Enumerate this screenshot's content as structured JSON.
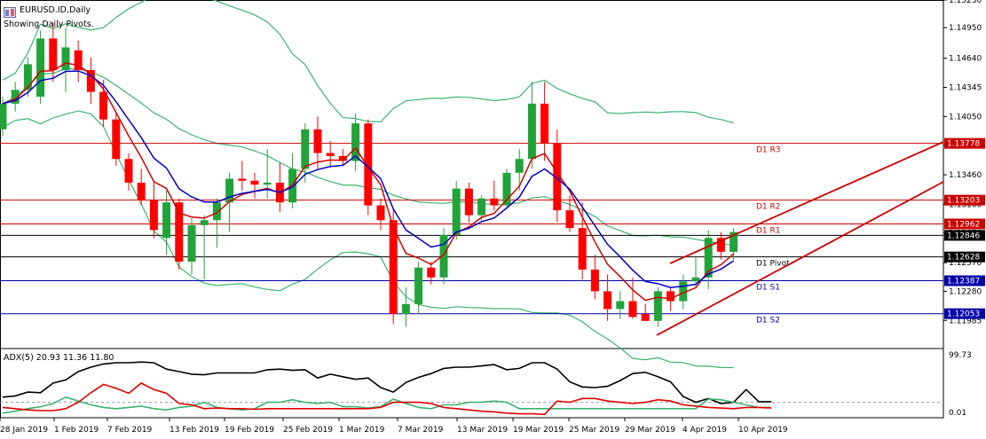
{
  "header": {
    "symbol": "EURUSD.ID,Daily",
    "pivot_note": "Showing Daily Pivots."
  },
  "colors": {
    "bull": "#22a33a",
    "bear": "#ff0000",
    "red_ma": "#d40000",
    "blue_ma": "#0000c8",
    "bands": "#3cb371",
    "resistance": "#cc0000",
    "support": "#0000aa",
    "pivot": "#000000",
    "adx_main": "#000000",
    "adx_plus": "#3cb371",
    "adx_minus": "#e00000"
  },
  "chart_data": [
    {
      "type": "candlestick",
      "title": "EURUSD.ID,Daily",
      "y_range": [
        1.117,
        1.1523
      ],
      "y_ticks": [
        "1.15230",
        "1.14950",
        "1.14640",
        "1.14345",
        "1.14050",
        "1.13760",
        "1.13460",
        "1.13160",
        "1.12870",
        "1.12570",
        "1.12280",
        "1.11985"
      ],
      "x_labels": [
        "28 Jan 2019",
        "1 Feb 2019",
        "7 Feb 2019",
        "13 Feb 2019",
        "19 Feb 2019",
        "25 Feb 2019",
        "1 Mar 2019",
        "7 Mar 2019",
        "13 Mar 2019",
        "19 Mar 2019",
        "25 Mar 2019",
        "29 Mar 2019",
        "4 Apr 2019",
        "10 Apr 2019"
      ],
      "candles": [
        [
          1.1392,
          1.1425,
          1.1385,
          1.1418
        ],
        [
          1.1418,
          1.144,
          1.141,
          1.1432
        ],
        [
          1.1432,
          1.1465,
          1.1425,
          1.1458
        ],
        [
          1.1425,
          1.1492,
          1.1418,
          1.1484
        ],
        [
          1.1484,
          1.15,
          1.144,
          1.1452
        ],
        [
          1.1452,
          1.1495,
          1.143,
          1.1475
        ],
        [
          1.1472,
          1.1482,
          1.144,
          1.1452
        ],
        [
          1.1452,
          1.1465,
          1.1418,
          1.143
        ],
        [
          1.143,
          1.1442,
          1.1395,
          1.1402
        ],
        [
          1.1402,
          1.1408,
          1.1355,
          1.1362
        ],
        [
          1.1362,
          1.1368,
          1.133,
          1.1338
        ],
        [
          1.1338,
          1.1352,
          1.1315,
          1.132
        ],
        [
          1.132,
          1.1338,
          1.1282,
          1.129
        ],
        [
          1.1282,
          1.133,
          1.1265,
          1.1318
        ],
        [
          1.1318,
          1.1322,
          1.125,
          1.1258
        ],
        [
          1.1258,
          1.1302,
          1.1245,
          1.1295
        ],
        [
          1.1295,
          1.1305,
          1.124,
          1.13
        ],
        [
          1.13,
          1.1322,
          1.1272,
          1.1318
        ],
        [
          1.1318,
          1.1348,
          1.1288,
          1.1342
        ],
        [
          1.1342,
          1.136,
          1.133,
          1.134
        ],
        [
          1.134,
          1.1348,
          1.1322,
          1.1336
        ],
        [
          1.1336,
          1.1372,
          1.1322,
          1.1338
        ],
        [
          1.1338,
          1.1358,
          1.1308,
          1.1318
        ],
        [
          1.1318,
          1.1368,
          1.1312,
          1.1352
        ],
        [
          1.1352,
          1.1398,
          1.1338,
          1.1392
        ],
        [
          1.1392,
          1.1405,
          1.1352,
          1.1368
        ],
        [
          1.1368,
          1.138,
          1.1355,
          1.1365
        ],
        [
          1.1365,
          1.1372,
          1.1355,
          1.136
        ],
        [
          1.136,
          1.1408,
          1.135,
          1.1398
        ],
        [
          1.1398,
          1.1402,
          1.1305,
          1.1315
        ],
        [
          1.1315,
          1.1322,
          1.129,
          1.13
        ],
        [
          1.13,
          1.1312,
          1.1195,
          1.1205
        ],
        [
          1.1205,
          1.1232,
          1.1192,
          1.1215
        ],
        [
          1.1215,
          1.1258,
          1.1205,
          1.1252
        ],
        [
          1.1252,
          1.1258,
          1.1235,
          1.1242
        ],
        [
          1.1242,
          1.1292,
          1.1235,
          1.1285
        ],
        [
          1.1285,
          1.134,
          1.128,
          1.1332
        ],
        [
          1.1332,
          1.1338,
          1.1298,
          1.1305
        ],
        [
          1.1305,
          1.1325,
          1.1298,
          1.1322
        ],
        [
          1.1322,
          1.134,
          1.131,
          1.1315
        ],
        [
          1.1315,
          1.1352,
          1.1312,
          1.1348
        ],
        [
          1.1348,
          1.1372,
          1.133,
          1.1362
        ],
        [
          1.1362,
          1.144,
          1.1352,
          1.1418
        ],
        [
          1.1418,
          1.144,
          1.136,
          1.1378
        ],
        [
          1.1378,
          1.1392,
          1.1298,
          1.131
        ],
        [
          1.131,
          1.1325,
          1.1288,
          1.1292
        ],
        [
          1.1292,
          1.1318,
          1.124,
          1.125
        ],
        [
          1.125,
          1.1265,
          1.122,
          1.1228
        ],
        [
          1.1228,
          1.1245,
          1.1198,
          1.121
        ],
        [
          1.121,
          1.1228,
          1.12,
          1.1218
        ],
        [
          1.1218,
          1.1242,
          1.12,
          1.1202
        ],
        [
          1.1205,
          1.1215,
          1.1198,
          1.1198
        ],
        [
          1.1198,
          1.1232,
          1.1192,
          1.1228
        ],
        [
          1.1228,
          1.1232,
          1.1208,
          1.1218
        ],
        [
          1.1218,
          1.1245,
          1.121,
          1.1238
        ],
        [
          1.1238,
          1.1262,
          1.1232,
          1.1242
        ],
        [
          1.1242,
          1.129,
          1.123,
          1.1282
        ],
        [
          1.1282,
          1.1288,
          1.126,
          1.1268
        ],
        [
          1.1268,
          1.1292,
          1.126,
          1.1288
        ]
      ],
      "pivot_levels": [
        {
          "label": "D1 R3",
          "value": "1.13778",
          "price": 1.13778
        },
        {
          "label": "D1 R2",
          "value": "1.13203",
          "price": 1.13203
        },
        {
          "label": "D1 R1",
          "value": "1.12962",
          "price": 1.12962
        },
        {
          "label": "D1 Pivot",
          "value": "1.12628",
          "price": 1.12628
        },
        {
          "label": "D1 S1",
          "value": "1.12387",
          "price": 1.12387
        },
        {
          "label": "D1 S2",
          "value": "1.12053",
          "price": 1.12053
        }
      ],
      "current_price": "1.12846"
    },
    {
      "type": "line",
      "title": "ADX(5) 20.93 11.36 11.80",
      "y_range": [
        0,
        100
      ],
      "y_ticks": [
        "99.73",
        "0.01"
      ],
      "series": [
        {
          "name": "ADX",
          "values": [
            28,
            30,
            36,
            35,
            50,
            55,
            68,
            75,
            80,
            82,
            82,
            83,
            82,
            72,
            68,
            64,
            63,
            66,
            66,
            66,
            66,
            71,
            72,
            70,
            71,
            58,
            64,
            60,
            56,
            58,
            43,
            36,
            51,
            59,
            65,
            73,
            75,
            75,
            77,
            79,
            71,
            73,
            82,
            82,
            72,
            52,
            44,
            43,
            45,
            54,
            65,
            67,
            60,
            52,
            29,
            20,
            26,
            18,
            20,
            40,
            21,
            21
          ]
        },
        {
          "name": "+DI",
          "values": [
            3,
            6,
            10,
            13,
            18,
            28,
            22,
            16,
            12,
            10,
            12,
            14,
            10,
            8,
            12,
            14,
            20,
            12,
            10,
            8,
            10,
            20,
            20,
            24,
            20,
            18,
            20,
            13,
            13,
            11,
            13,
            25,
            18,
            12,
            10,
            16,
            16,
            20,
            20,
            22,
            20,
            10,
            10,
            10,
            10,
            10,
            10,
            10,
            10,
            10,
            10,
            10,
            10,
            10,
            10,
            10,
            25,
            24,
            20,
            16,
            12,
            12
          ]
        },
        {
          "name": "-DI",
          "values": [
            12,
            10,
            8,
            7,
            7,
            10,
            20,
            35,
            48,
            42,
            34,
            50,
            40,
            34,
            18,
            16,
            10,
            11,
            10,
            10,
            9,
            10,
            10,
            10,
            10,
            10,
            10,
            10,
            10,
            10,
            12,
            20,
            20,
            20,
            18,
            12,
            10,
            8,
            6,
            5,
            3,
            2,
            2,
            1,
            22,
            20,
            26,
            26,
            22,
            20,
            18,
            20,
            24,
            22,
            16,
            14,
            12,
            11,
            10,
            12,
            12,
            11
          ]
        }
      ]
    }
  ],
  "indicator_label": "ADX(5) 20.93 11.36 11.80",
  "adx_high_label": "99.73",
  "adx_low_label": "0.01"
}
